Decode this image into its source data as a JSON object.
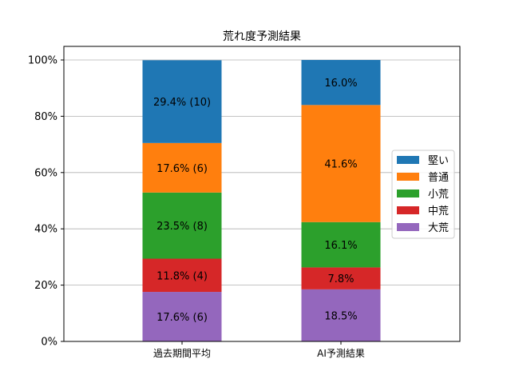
{
  "chart_data": {
    "type": "bar",
    "stacked": true,
    "title": "荒れ度予測結果",
    "xlabel": "",
    "ylabel": "",
    "ylim": [
      0,
      100
    ],
    "y_tick_labels": [
      "0%",
      "20%",
      "40%",
      "60%",
      "80%",
      "100%"
    ],
    "y_ticks": [
      0,
      20,
      40,
      60,
      80,
      100
    ],
    "grid": "horizontal",
    "legend_position": "right",
    "categories": [
      "過去期間平均",
      "AI予測結果"
    ],
    "series": [
      {
        "name": "大荒",
        "color": "#9467bd",
        "values": [
          17.6,
          18.5
        ],
        "labels": [
          "17.6% (6)",
          "18.5%"
        ]
      },
      {
        "name": "中荒",
        "color": "#d62728",
        "values": [
          11.8,
          7.8
        ],
        "labels": [
          "11.8% (4)",
          "7.8%"
        ]
      },
      {
        "name": "小荒",
        "color": "#2ca02c",
        "values": [
          23.5,
          16.1
        ],
        "labels": [
          "23.5% (8)",
          "16.1%"
        ]
      },
      {
        "name": "普通",
        "color": "#ff7f0e",
        "values": [
          17.6,
          41.6
        ],
        "labels": [
          "17.6% (6)",
          "41.6%"
        ]
      },
      {
        "name": "堅い",
        "color": "#1f77b4",
        "values": [
          29.4,
          16.0
        ],
        "labels": [
          "29.4% (10)",
          "16.0%"
        ]
      }
    ]
  }
}
